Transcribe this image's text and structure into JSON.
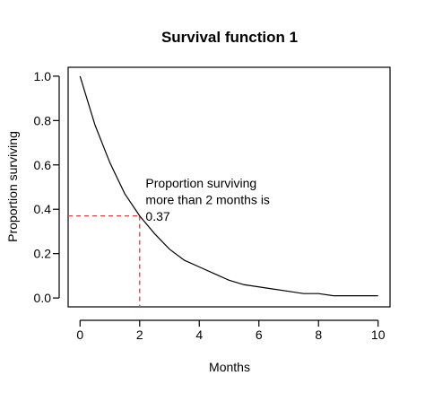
{
  "chart_data": {
    "type": "line",
    "title": "Survival function 1",
    "xlabel": "Months",
    "ylabel": "Proportion surviving",
    "xlim": [
      -0.4,
      10.4
    ],
    "ylim": [
      -0.04,
      1.04
    ],
    "x_ticks": [
      0,
      2,
      4,
      6,
      8,
      10
    ],
    "x_tick_labels": [
      "0",
      "2",
      "4",
      "6",
      "8",
      "10"
    ],
    "y_ticks": [
      0.0,
      0.2,
      0.4,
      0.6,
      0.8,
      1.0
    ],
    "y_tick_labels": [
      "0.0",
      "0.2",
      "0.4",
      "0.6",
      "0.8",
      "1.0"
    ],
    "grid": false,
    "series": [
      {
        "x": [
          0,
          0.5,
          1,
          1.5,
          2,
          2.5,
          3,
          3.5,
          4,
          4.5,
          5,
          5.5,
          6,
          6.5,
          7,
          7.5,
          8,
          8.5,
          9,
          9.5,
          10
        ],
        "values": [
          1.0,
          0.78,
          0.61,
          0.47,
          0.37,
          0.29,
          0.22,
          0.17,
          0.14,
          0.11,
          0.08,
          0.06,
          0.05,
          0.04,
          0.03,
          0.02,
          0.02,
          0.01,
          0.01,
          0.01,
          0.01
        ],
        "color": "#000000"
      }
    ],
    "reference_point": {
      "x": 2,
      "y": 0.37,
      "color": "#e0413a"
    },
    "annotation": {
      "lines": [
        "Proportion surviving",
        "more than 2 months is",
        "0.37"
      ],
      "x": 2.2
    }
  }
}
